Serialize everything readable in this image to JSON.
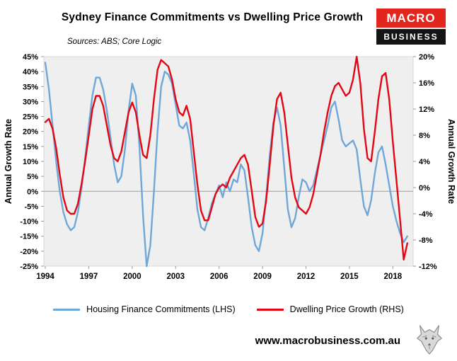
{
  "header": {
    "title": "Sydney Finance Commitments vs Dwelling Price Growth",
    "sources": "Sources: ABS; Core Logic"
  },
  "logo": {
    "line1": "MACRO",
    "line2": "BUSINESS",
    "red": "#e2261d",
    "black": "#141414"
  },
  "footer": {
    "website": "www.macrobusiness.com.au",
    "logo_icon": "wolf-icon"
  },
  "chart_data": {
    "type": "line",
    "title": "Sydney Finance Commitments vs Dwelling Price Growth",
    "ylabel_left": "Annual Growth Rate",
    "ylabel_right": "Annual Growth Rate",
    "x_range": [
      1993.9,
      2019.4
    ],
    "x_ticks": [
      1994,
      1997,
      2000,
      2003,
      2006,
      2009,
      2012,
      2015,
      2018
    ],
    "left_axis": {
      "min": -25,
      "max": 45,
      "step": 5,
      "unit": "%"
    },
    "right_axis": {
      "min": -12,
      "max": 20,
      "step": 4,
      "unit": "%"
    },
    "plot_bg": "#efefef",
    "plot_border": "#d9d9d9",
    "zero_line_color": "#9b9b9b",
    "grid": false,
    "legend_position": "bottom",
    "x_start": 1994,
    "x_step": 0.25,
    "x_end": 2019,
    "series": [
      {
        "name": "Housing Finance Commitments (LHS)",
        "axis": "left",
        "color": "#6fa8d8",
        "values": [
          43,
          34,
          22,
          10,
          0,
          -7,
          -11,
          -13,
          -12,
          -7,
          1,
          11,
          22,
          32,
          38,
          38,
          34,
          27,
          18,
          9,
          3,
          5,
          14,
          27,
          36,
          32,
          15,
          -8,
          -25,
          -18,
          0,
          20,
          35,
          40,
          39,
          36,
          29,
          22,
          21,
          23,
          17,
          6,
          -6,
          -12,
          -13,
          -9,
          -4,
          -1,
          2,
          -2,
          3,
          0,
          4,
          3,
          9,
          7,
          -2,
          -12,
          -18,
          -20,
          -14,
          -2,
          12,
          23,
          28,
          22,
          8,
          -6,
          -12,
          -9,
          -2,
          4,
          3,
          0,
          2,
          7,
          12,
          17,
          22,
          28,
          30,
          24,
          17,
          15,
          16,
          17,
          14,
          4,
          -5,
          -8,
          -3,
          6,
          13,
          15,
          9,
          2,
          -5,
          -10,
          -14,
          -17,
          -15
        ]
      },
      {
        "name": "Dwelling Price Growth (RHS)",
        "axis": "right",
        "color": "#e30613",
        "values": [
          10,
          10.5,
          9,
          6,
          2,
          -1.5,
          -3.5,
          -4,
          -4,
          -2.5,
          0.5,
          4,
          8,
          12,
          14,
          14,
          12.5,
          9.5,
          6.5,
          4.5,
          4,
          5.5,
          8.5,
          11.5,
          13,
          11.5,
          8,
          5,
          4.5,
          8,
          13.5,
          18,
          19.5,
          19,
          18.5,
          16.5,
          13.5,
          11.5,
          11,
          12.5,
          10.5,
          5.5,
          0.5,
          -3.5,
          -5,
          -5,
          -3,
          -1,
          0,
          0.5,
          0,
          1.5,
          2.5,
          3.5,
          4.5,
          5,
          3.5,
          -0.5,
          -4.5,
          -6,
          -5.5,
          -2,
          3.5,
          9.5,
          13.5,
          14.5,
          11.5,
          6.5,
          1.5,
          -1.5,
          -3,
          -3.5,
          -4,
          -3,
          -1,
          2,
          5,
          8.5,
          11.5,
          14,
          15.5,
          16,
          15,
          14,
          14.5,
          16.5,
          20,
          16,
          9,
          4.5,
          4,
          8.5,
          13.5,
          17,
          17.5,
          13.5,
          7,
          1,
          -5,
          -11,
          -8.5
        ]
      }
    ]
  }
}
